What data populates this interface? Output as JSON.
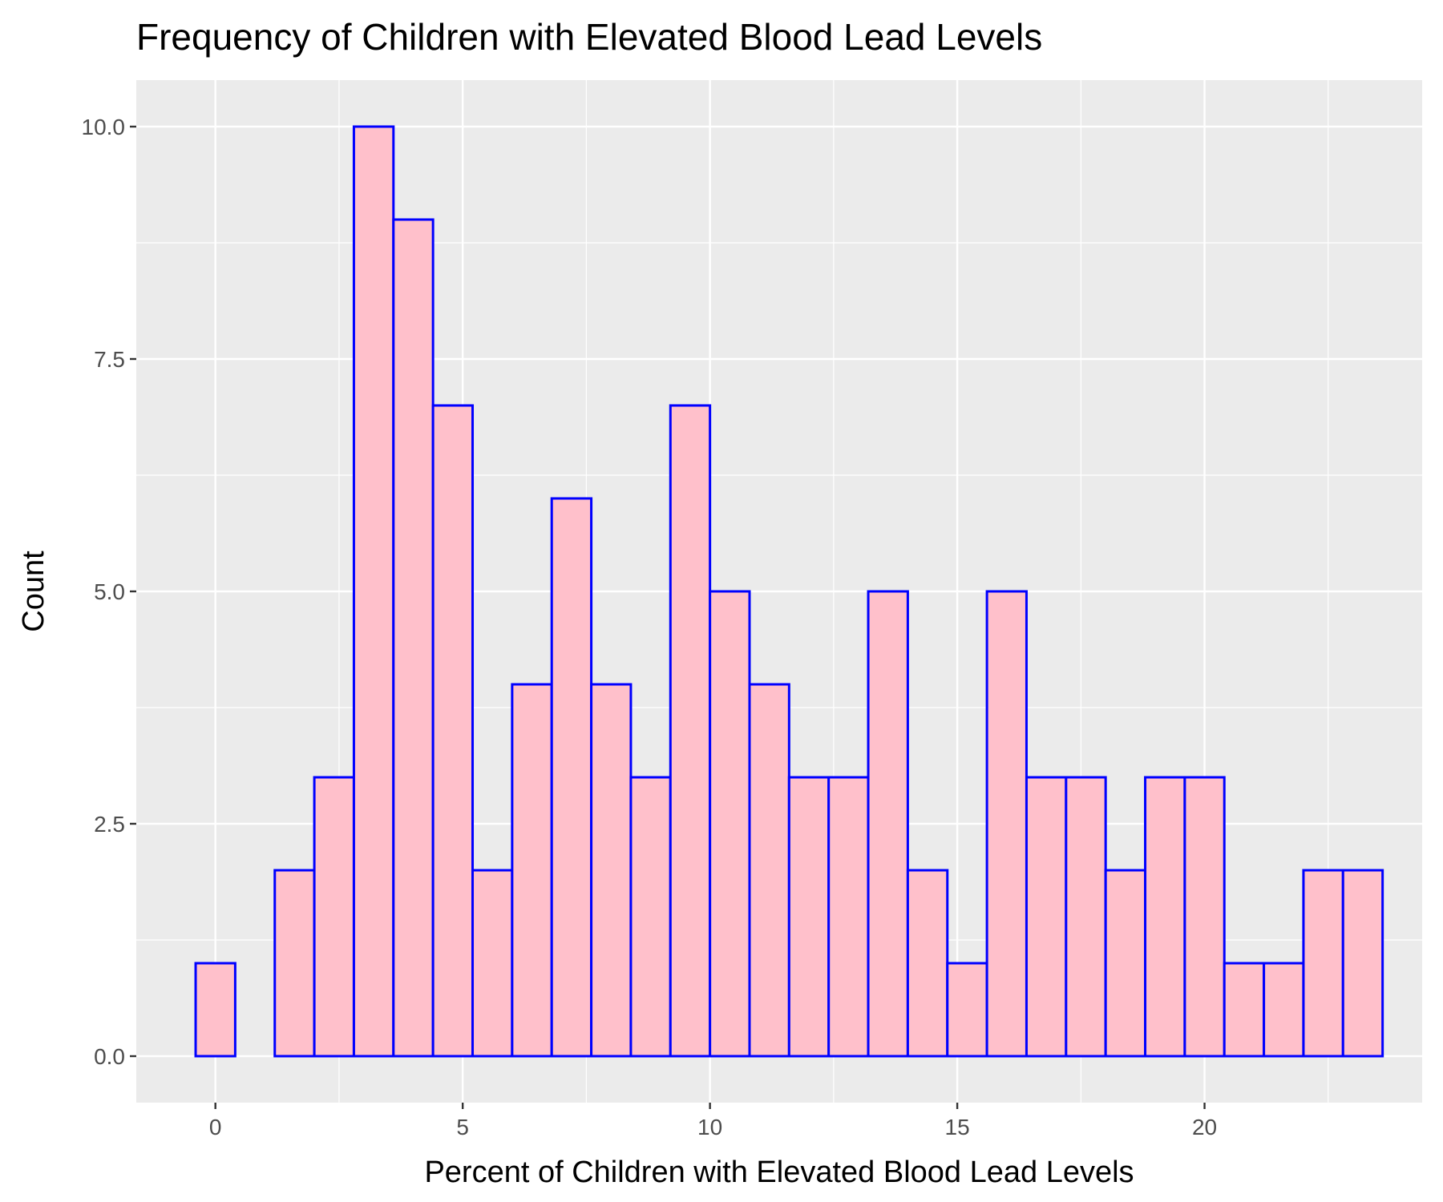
{
  "chart_data": {
    "type": "bar",
    "title": "Frequency of Children with Elevated Blood Lead Levels",
    "xlabel": "Percent of Children with Elevated Blood Lead Levels",
    "ylabel": "Count",
    "bins": [
      {
        "center": 0.0,
        "count": 1
      },
      {
        "center": 0.8,
        "count": 0
      },
      {
        "center": 1.6,
        "count": 2
      },
      {
        "center": 2.4,
        "count": 3
      },
      {
        "center": 3.2,
        "count": 10
      },
      {
        "center": 4.0,
        "count": 9
      },
      {
        "center": 4.8,
        "count": 7
      },
      {
        "center": 5.6,
        "count": 2
      },
      {
        "center": 6.4,
        "count": 4
      },
      {
        "center": 7.2,
        "count": 6
      },
      {
        "center": 8.0,
        "count": 4
      },
      {
        "center": 8.8,
        "count": 3
      },
      {
        "center": 9.6,
        "count": 7
      },
      {
        "center": 10.4,
        "count": 5
      },
      {
        "center": 11.2,
        "count": 4
      },
      {
        "center": 12.0,
        "count": 3
      },
      {
        "center": 12.8,
        "count": 3
      },
      {
        "center": 13.6,
        "count": 5
      },
      {
        "center": 14.4,
        "count": 2
      },
      {
        "center": 15.2,
        "count": 1
      },
      {
        "center": 16.0,
        "count": 5
      },
      {
        "center": 16.8,
        "count": 3
      },
      {
        "center": 17.6,
        "count": 3
      },
      {
        "center": 18.4,
        "count": 2
      },
      {
        "center": 19.2,
        "count": 3
      },
      {
        "center": 20.0,
        "count": 3
      },
      {
        "center": 20.8,
        "count": 1
      },
      {
        "center": 21.6,
        "count": 1
      },
      {
        "center": 22.4,
        "count": 2
      },
      {
        "center": 23.2,
        "count": 2
      }
    ],
    "bin_width": 0.8,
    "xlim": [
      -1.6,
      24.4
    ],
    "ylim": [
      -0.5,
      10.5
    ],
    "x_ticks": [
      0,
      5,
      10,
      15,
      20
    ],
    "x_tick_labels": [
      "0",
      "5",
      "10",
      "15",
      "20"
    ],
    "y_ticks": [
      0,
      2.5,
      5,
      7.5,
      10
    ],
    "y_tick_labels": [
      "0.0",
      "2.5",
      "5.0",
      "7.5",
      "10.0"
    ],
    "bar_fill": "#ffc0cb",
    "bar_outline": "#0000ff",
    "panel_background": "#ebebeb",
    "grid": true,
    "legend": "none"
  }
}
